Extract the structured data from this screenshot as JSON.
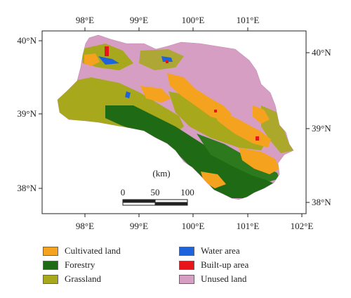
{
  "map": {
    "top_ticks": [
      "98°E",
      "99°E",
      "100°E",
      "101°E"
    ],
    "bottom_ticks": [
      "98°E",
      "99°E",
      "100°E",
      "101°E",
      "102°E"
    ],
    "left_ticks": [
      "40°N",
      "39°N",
      "38°N"
    ],
    "right_ticks": [
      "40°N",
      "39°N",
      "38°N"
    ],
    "scalebar": {
      "unit": "(km)",
      "labels": [
        "0",
        "50",
        "100"
      ]
    }
  },
  "legend": [
    {
      "label": "Cultivated land",
      "color": "#f5a21e"
    },
    {
      "label": "Forestry",
      "color": "#1f6a14"
    },
    {
      "label": "Grassland",
      "color": "#a7a81c"
    },
    {
      "label": "Water area",
      "color": "#1d63dc"
    },
    {
      "label": "Built-up area",
      "color": "#e8141a"
    },
    {
      "label": "Unused land",
      "color": "#d79ec3"
    }
  ],
  "colors": {
    "frame": "#222222",
    "region_base": "#d79ec3"
  }
}
